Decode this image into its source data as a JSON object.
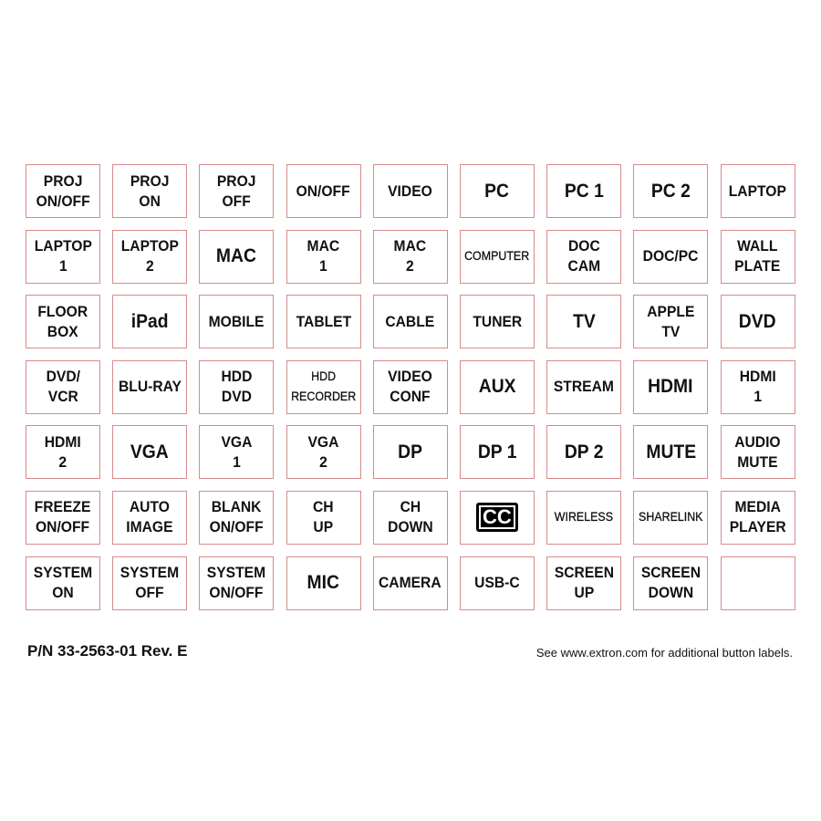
{
  "labels": [
    {
      "text": "PROJ\nON/OFF"
    },
    {
      "text": "PROJ\nON"
    },
    {
      "text": "PROJ\nOFF"
    },
    {
      "text": "ON/OFF"
    },
    {
      "text": "VIDEO"
    },
    {
      "text": "PC",
      "variant": "lg"
    },
    {
      "text": "PC 1",
      "variant": "lg"
    },
    {
      "text": "PC 2",
      "variant": "lg"
    },
    {
      "text": "LAPTOP"
    },
    {
      "text": "LAPTOP\n1"
    },
    {
      "text": "LAPTOP\n2"
    },
    {
      "text": "MAC",
      "variant": "lg"
    },
    {
      "text": "MAC\n1"
    },
    {
      "text": "MAC\n2"
    },
    {
      "text": "COMPUTER",
      "variant": "sm"
    },
    {
      "text": "DOC\nCAM"
    },
    {
      "text": "DOC/PC"
    },
    {
      "text": "WALL\nPLATE"
    },
    {
      "text": "FLOOR\nBOX"
    },
    {
      "text": "iPad",
      "variant": "lg"
    },
    {
      "text": "MOBILE"
    },
    {
      "text": "TABLET"
    },
    {
      "text": "CABLE"
    },
    {
      "text": "TUNER"
    },
    {
      "text": "TV",
      "variant": "lg"
    },
    {
      "text": "APPLE\nTV"
    },
    {
      "text": "DVD",
      "variant": "lg"
    },
    {
      "text": "DVD/\nVCR"
    },
    {
      "text": "BLU-RAY"
    },
    {
      "text": "HDD\nDVD"
    },
    {
      "text": "HDD\nRECORDER",
      "variant": "sm"
    },
    {
      "text": "VIDEO\nCONF"
    },
    {
      "text": "AUX",
      "variant": "lg"
    },
    {
      "text": "STREAM"
    },
    {
      "text": "HDMI",
      "variant": "lg"
    },
    {
      "text": "HDMI\n1"
    },
    {
      "text": "HDMI\n2"
    },
    {
      "text": "VGA",
      "variant": "lg"
    },
    {
      "text": "VGA\n1"
    },
    {
      "text": "VGA\n2"
    },
    {
      "text": "DP",
      "variant": "lg"
    },
    {
      "text": "DP 1",
      "variant": "lg"
    },
    {
      "text": "DP 2",
      "variant": "lg"
    },
    {
      "text": "MUTE",
      "variant": "lg"
    },
    {
      "text": "AUDIO\nMUTE"
    },
    {
      "text": "FREEZE\nON/OFF"
    },
    {
      "text": "AUTO\nIMAGE"
    },
    {
      "text": "BLANK\nON/OFF"
    },
    {
      "text": "CH\nUP"
    },
    {
      "text": "CH\nDOWN"
    },
    {
      "text": "CC",
      "variant": "cc"
    },
    {
      "text": "WIRELESS",
      "variant": "sm"
    },
    {
      "text": "SHARELINK",
      "variant": "sm"
    },
    {
      "text": "MEDIA\nPLAYER"
    },
    {
      "text": "SYSTEM\nON"
    },
    {
      "text": "SYSTEM\nOFF"
    },
    {
      "text": "SYSTEM\nON/OFF"
    },
    {
      "text": "MIC",
      "variant": "lg"
    },
    {
      "text": "CAMERA"
    },
    {
      "text": "USB-C"
    },
    {
      "text": "SCREEN\nUP"
    },
    {
      "text": "SCREEN\nDOWN"
    },
    {
      "text": ""
    }
  ],
  "part_number": "P/N 33-2563-01 Rev. E",
  "note": "See www.extron.com for additional button labels.",
  "colors": {
    "border": "#d98a8a",
    "text": "#111111"
  }
}
